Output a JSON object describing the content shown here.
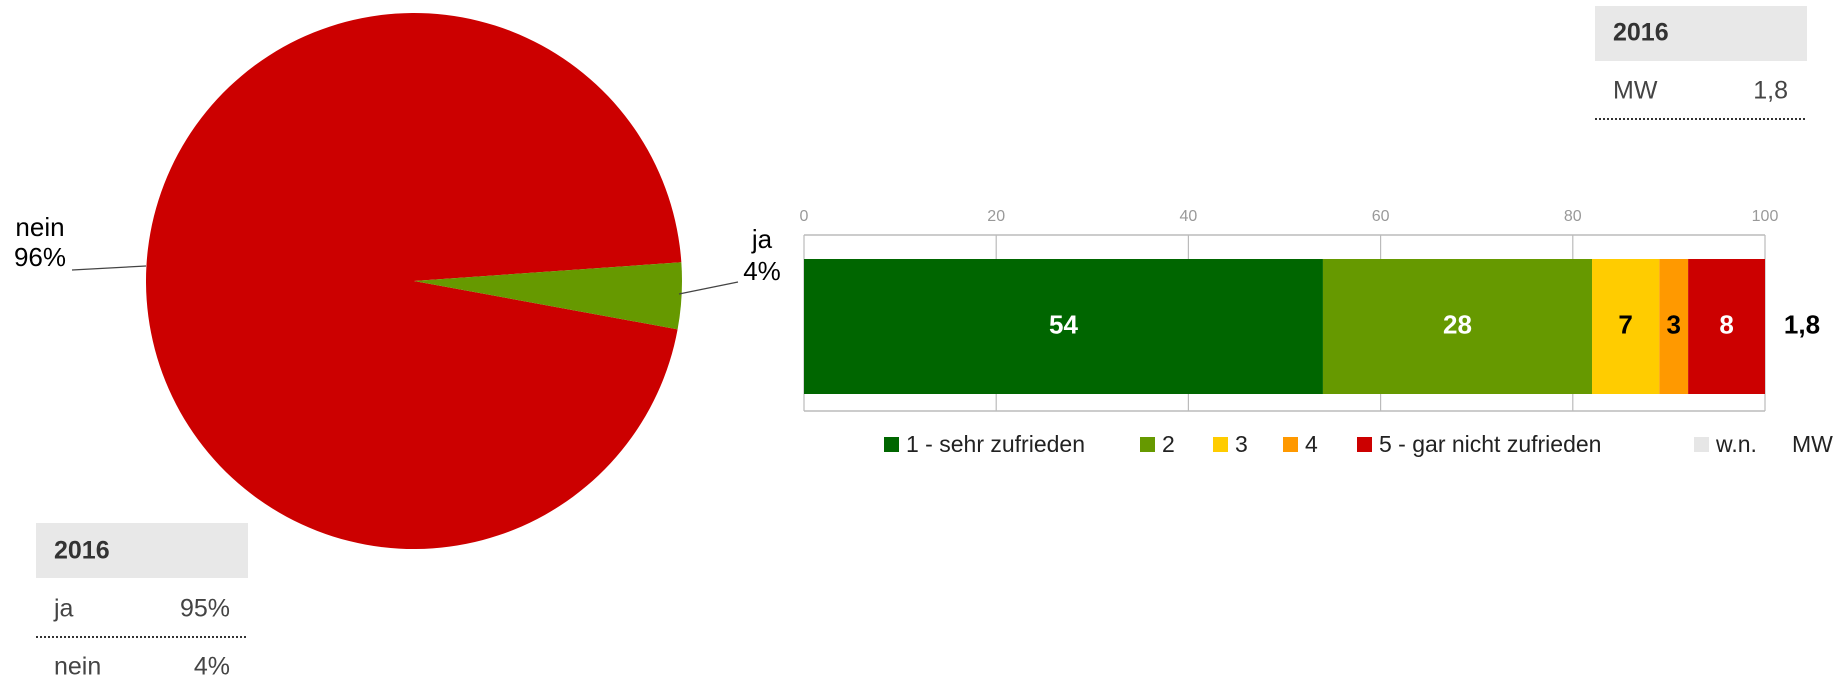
{
  "chart_data": [
    {
      "type": "pie",
      "categories": [
        "nein",
        "ja"
      ],
      "values": [
        96,
        4
      ],
      "value_labels": [
        "96%",
        "4%"
      ],
      "colors": [
        "#cc0000",
        "#669900"
      ]
    },
    {
      "type": "stacked-bar",
      "orientation": "horizontal",
      "series": [
        {
          "name": "1 - sehr zufrieden",
          "color": "#006600",
          "label_color": "#ffffff",
          "values": [
            54
          ]
        },
        {
          "name": "2",
          "color": "#669900",
          "label_color": "#ffffff",
          "values": [
            28
          ]
        },
        {
          "name": "3",
          "color": "#ffcc00",
          "label_color": "#000000",
          "values": [
            7
          ]
        },
        {
          "name": "4",
          "color": "#ff9900",
          "label_color": "#000000",
          "values": [
            3
          ]
        },
        {
          "name": "5 - gar nicht zufrieden",
          "color": "#cc0000",
          "label_color": "#ffffff",
          "values": [
            8
          ]
        },
        {
          "name": "w.n.",
          "color": "#e6e6e6",
          "label_color": "#000000",
          "values": [
            0
          ]
        }
      ],
      "xlim": [
        0,
        100
      ],
      "xticks": [
        0,
        20,
        40,
        60,
        80,
        100
      ],
      "grid": true,
      "mean_name": "MW",
      "mean": 1.8,
      "mean_label": "1,8"
    }
  ],
  "table_left": {
    "header": "2016",
    "rows": [
      [
        "ja",
        "95%"
      ],
      [
        "nein",
        "4%"
      ]
    ]
  },
  "table_right": {
    "header": "2016",
    "rows": [
      [
        "MW",
        "1,8"
      ]
    ]
  }
}
